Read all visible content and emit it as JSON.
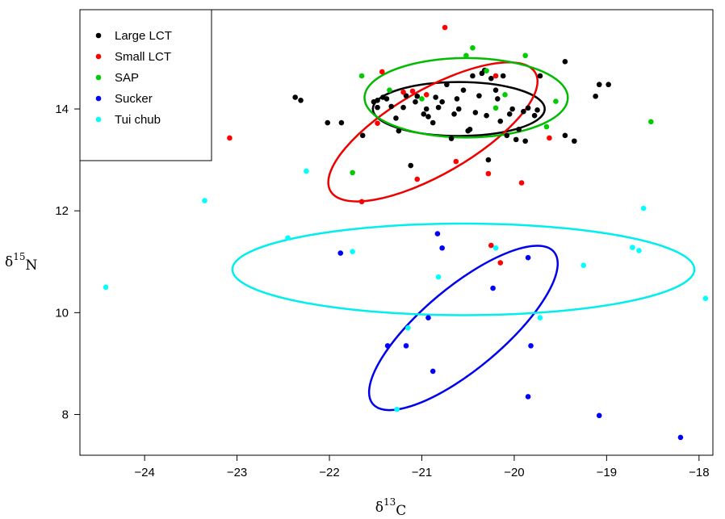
{
  "chart_data": {
    "type": "scatter",
    "title": "",
    "xlabel": {
      "base": "δ",
      "sup": "13",
      "sub": "C"
    },
    "ylabel": {
      "base": "δ",
      "sup": "15",
      "sub": "N"
    },
    "xlim": [
      -24.7,
      -17.85
    ],
    "ylim": [
      7.2,
      15.95
    ],
    "x_ticks": [
      -24,
      -23,
      -22,
      -21,
      -20,
      -19,
      -18
    ],
    "y_ticks": [
      8,
      10,
      12,
      14
    ],
    "x_tick_labels": [
      "−24",
      "−23",
      "−22",
      "−21",
      "−20",
      "−19",
      "−18"
    ],
    "y_tick_labels": [
      "8",
      "10",
      "12",
      "14"
    ],
    "grid": false,
    "legend": {
      "position": "top-left",
      "entries": [
        "Large LCT",
        "Small LCT",
        "SAP",
        "Sucker",
        "Tui chub"
      ]
    },
    "series": [
      {
        "name": "Large LCT",
        "color": "#000000",
        "points": [
          [
            -22.37,
            14.23
          ],
          [
            -22.31,
            14.17
          ],
          [
            -22.02,
            13.73
          ],
          [
            -21.87,
            13.73
          ],
          [
            -21.64,
            13.48
          ],
          [
            -21.52,
            14.14
          ],
          [
            -21.48,
            14.17
          ],
          [
            -21.48,
            14.03
          ],
          [
            -21.42,
            14.23
          ],
          [
            -21.38,
            14.2
          ],
          [
            -21.33,
            14.05
          ],
          [
            -21.28,
            13.82
          ],
          [
            -21.25,
            13.57
          ],
          [
            -21.2,
            14.03
          ],
          [
            -21.17,
            14.26
          ],
          [
            -21.12,
            12.89
          ],
          [
            -21.07,
            14.14
          ],
          [
            -21.05,
            14.25
          ],
          [
            -20.98,
            13.9
          ],
          [
            -20.95,
            14.0
          ],
          [
            -20.93,
            13.85
          ],
          [
            -20.88,
            13.73
          ],
          [
            -20.85,
            14.23
          ],
          [
            -20.82,
            14.03
          ],
          [
            -20.78,
            14.14
          ],
          [
            -20.73,
            14.48
          ],
          [
            -20.68,
            13.42
          ],
          [
            -20.65,
            13.9
          ],
          [
            -20.62,
            14.2
          ],
          [
            -20.6,
            14.0
          ],
          [
            -20.55,
            14.37
          ],
          [
            -20.5,
            13.57
          ],
          [
            -20.48,
            13.6
          ],
          [
            -20.45,
            14.65
          ],
          [
            -20.42,
            13.93
          ],
          [
            -20.38,
            14.26
          ],
          [
            -20.35,
            14.7
          ],
          [
            -20.32,
            14.76
          ],
          [
            -20.3,
            13.87
          ],
          [
            -20.28,
            13.0
          ],
          [
            -20.25,
            14.6
          ],
          [
            -20.2,
            14.37
          ],
          [
            -20.18,
            14.2
          ],
          [
            -20.15,
            13.76
          ],
          [
            -20.12,
            14.65
          ],
          [
            -20.08,
            13.48
          ],
          [
            -20.05,
            13.9
          ],
          [
            -20.02,
            14.0
          ],
          [
            -19.98,
            13.4
          ],
          [
            -19.95,
            13.6
          ],
          [
            -19.9,
            13.95
          ],
          [
            -19.88,
            13.37
          ],
          [
            -19.85,
            14.02
          ],
          [
            -19.78,
            13.87
          ],
          [
            -19.75,
            13.98
          ],
          [
            -19.72,
            14.65
          ],
          [
            -19.45,
            14.93
          ],
          [
            -19.45,
            13.48
          ],
          [
            -19.35,
            13.37
          ],
          [
            -19.12,
            14.25
          ],
          [
            -19.08,
            14.48
          ],
          [
            -18.98,
            14.48
          ]
        ]
      },
      {
        "name": "Small LCT",
        "color": "#ff0000",
        "points": [
          [
            -23.08,
            13.43
          ],
          [
            -21.65,
            12.18
          ],
          [
            -21.48,
            13.72
          ],
          [
            -21.43,
            14.73
          ],
          [
            -21.2,
            14.33
          ],
          [
            -21.1,
            14.35
          ],
          [
            -21.05,
            12.62
          ],
          [
            -20.95,
            14.28
          ],
          [
            -20.75,
            15.6
          ],
          [
            -20.63,
            12.97
          ],
          [
            -20.28,
            12.73
          ],
          [
            -20.2,
            14.65
          ],
          [
            -20.25,
            11.32
          ],
          [
            -20.15,
            10.98
          ],
          [
            -19.92,
            12.55
          ],
          [
            -19.62,
            13.43
          ]
        ]
      },
      {
        "name": "SAP",
        "color": "#00cc00",
        "points": [
          [
            -21.75,
            12.75
          ],
          [
            -21.65,
            14.65
          ],
          [
            -21.35,
            14.37
          ],
          [
            -21.0,
            14.2
          ],
          [
            -20.52,
            15.05
          ],
          [
            -20.45,
            15.2
          ],
          [
            -20.3,
            14.75
          ],
          [
            -20.2,
            14.02
          ],
          [
            -20.1,
            14.28
          ],
          [
            -19.88,
            15.05
          ],
          [
            -19.65,
            13.65
          ],
          [
            -19.55,
            14.15
          ],
          [
            -18.52,
            13.75
          ]
        ]
      },
      {
        "name": "Sucker",
        "color": "#0000ff",
        "points": [
          [
            -21.88,
            11.17
          ],
          [
            -21.37,
            9.35
          ],
          [
            -21.17,
            9.35
          ],
          [
            -20.93,
            9.9
          ],
          [
            -20.88,
            8.85
          ],
          [
            -20.83,
            11.55
          ],
          [
            -20.78,
            11.27
          ],
          [
            -20.23,
            10.48
          ],
          [
            -19.85,
            11.08
          ],
          [
            -19.82,
            9.35
          ],
          [
            -19.85,
            8.35
          ],
          [
            -19.08,
            7.98
          ],
          [
            -18.2,
            7.55
          ]
        ]
      },
      {
        "name": "Tui chub",
        "color": "#00ffff",
        "points": [
          [
            -24.42,
            10.5
          ],
          [
            -23.35,
            12.2
          ],
          [
            -22.25,
            12.78
          ],
          [
            -22.45,
            11.47
          ],
          [
            -21.75,
            11.2
          ],
          [
            -21.27,
            8.1
          ],
          [
            -21.15,
            9.7
          ],
          [
            -20.82,
            10.7
          ],
          [
            -20.2,
            11.27
          ],
          [
            -19.72,
            9.9
          ],
          [
            -19.25,
            10.93
          ],
          [
            -18.72,
            11.28
          ],
          [
            -18.65,
            11.22
          ],
          [
            -18.6,
            12.05
          ],
          [
            -17.93,
            10.28
          ]
        ]
      }
    ],
    "ellipses": [
      {
        "series": "Large LCT",
        "color": "#000000",
        "cx": -20.6,
        "cy": 14.0,
        "rx": 0.93,
        "ry": 0.53,
        "angle_deg": 0
      },
      {
        "series": "Small LCT",
        "color": "#ee0000",
        "cx": -20.88,
        "cy": 13.55,
        "rx": 1.28,
        "ry": 0.83,
        "angle_deg": -30
      },
      {
        "series": "SAP",
        "color": "#00bb00",
        "cx": -20.52,
        "cy": 14.22,
        "rx": 1.1,
        "ry": 0.78,
        "angle_deg": 0
      },
      {
        "series": "Sucker",
        "color": "#0000ee",
        "cx": -20.55,
        "cy": 9.7,
        "rx": 1.28,
        "ry": 0.8,
        "angle_deg": -40
      },
      {
        "series": "Tui chub",
        "color": "#00eeee",
        "cx": -20.55,
        "cy": 10.85,
        "rx": 2.5,
        "ry": 0.9,
        "angle_deg": 0
      }
    ]
  }
}
